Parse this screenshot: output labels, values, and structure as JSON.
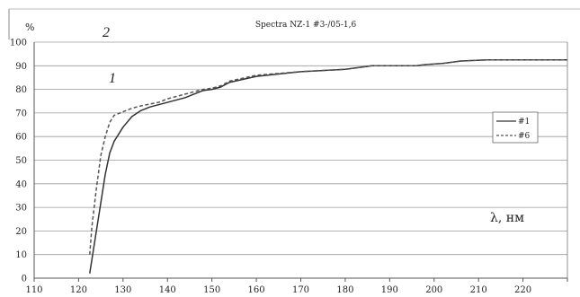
{
  "chart_data": {
    "type": "line",
    "title": "Spectra NZ-1 #3-/05-1,6",
    "ylabel": "%",
    "xlabel": "λ, нм",
    "xlim": [
      110,
      230
    ],
    "ylim": [
      0,
      100
    ],
    "x_ticks": [
      "110",
      "120",
      "130",
      "140",
      "150",
      "160",
      "170",
      "180",
      "190",
      "200",
      "210",
      "220"
    ],
    "y_ticks": [
      "0",
      "10",
      "20",
      "30",
      "40",
      "50",
      "60",
      "70",
      "80",
      "90",
      "100"
    ],
    "grid": "horizontal",
    "legend_position": "right",
    "annotations": [
      "1",
      "2"
    ],
    "series": [
      {
        "name": "#1",
        "style": "solid",
        "color": "#333333",
        "points": [
          [
            122.5,
            2
          ],
          [
            123,
            8
          ],
          [
            124,
            20
          ],
          [
            125,
            32
          ],
          [
            126,
            44
          ],
          [
            127,
            53
          ],
          [
            128,
            58
          ],
          [
            130,
            64
          ],
          [
            132,
            68.5
          ],
          [
            134,
            71
          ],
          [
            136,
            72.5
          ],
          [
            138,
            73.5
          ],
          [
            140,
            74.5
          ],
          [
            144,
            76.5
          ],
          [
            146,
            78
          ],
          [
            148,
            79.5
          ],
          [
            150,
            80
          ],
          [
            152,
            81
          ],
          [
            154,
            83
          ],
          [
            160,
            85.5
          ],
          [
            170,
            87.5
          ],
          [
            180,
            88.5
          ],
          [
            184,
            89.5
          ],
          [
            186,
            90
          ],
          [
            196,
            90
          ],
          [
            198,
            90.5
          ],
          [
            202,
            91
          ],
          [
            206,
            92
          ],
          [
            212,
            92.5
          ],
          [
            230,
            92.5
          ]
        ]
      },
      {
        "name": "#6",
        "style": "dashed",
        "color": "#555555",
        "points": [
          [
            122.5,
            10
          ],
          [
            123,
            22
          ],
          [
            124,
            38
          ],
          [
            125,
            52
          ],
          [
            126,
            60
          ],
          [
            127,
            66
          ],
          [
            128,
            69
          ],
          [
            130,
            70.5
          ],
          [
            132,
            72
          ],
          [
            134,
            73
          ],
          [
            138,
            74.5
          ],
          [
            140,
            76
          ],
          [
            142,
            77
          ],
          [
            144,
            78
          ],
          [
            146,
            79
          ],
          [
            148,
            80
          ],
          [
            150,
            80.5
          ],
          [
            152,
            81.5
          ],
          [
            154,
            83.5
          ],
          [
            160,
            86
          ],
          [
            170,
            87.5
          ],
          [
            180,
            88.5
          ],
          [
            184,
            89.5
          ],
          [
            186,
            90
          ],
          [
            196,
            90
          ],
          [
            198,
            90.5
          ],
          [
            202,
            91
          ],
          [
            206,
            92
          ],
          [
            212,
            92.5
          ],
          [
            230,
            92.5
          ]
        ]
      }
    ]
  }
}
